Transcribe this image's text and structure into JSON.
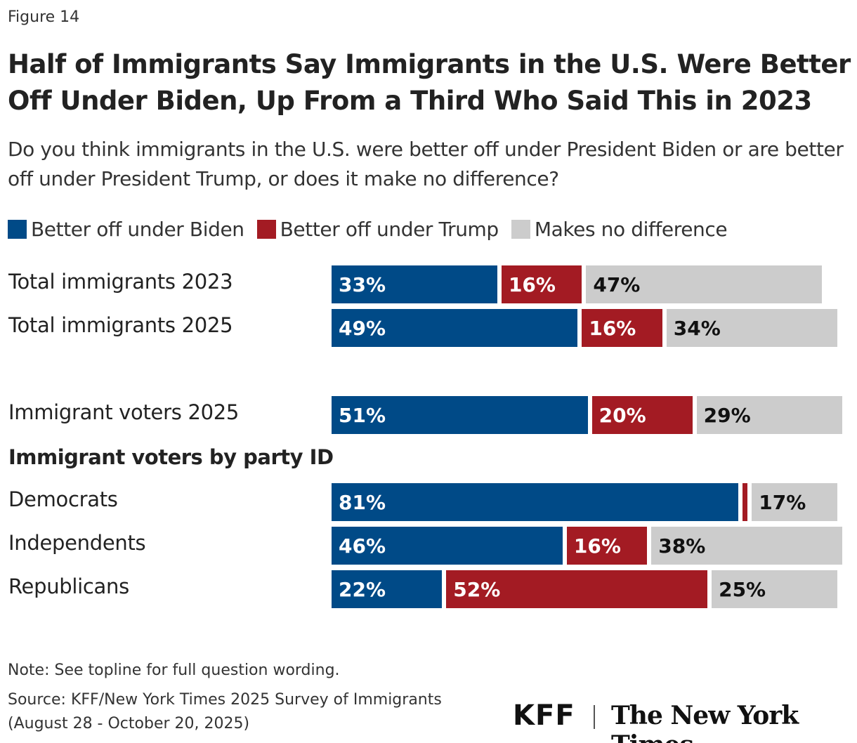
{
  "figure_label": "Figure 14",
  "chart_data": {
    "type": "bar",
    "orientation": "horizontal",
    "stacked": true,
    "title": "Half of Immigrants Say Immigrants in the U.S. Were Better Off Under Biden, Up From a Third Who Said This in 2023",
    "subtitle": "Do you think immigrants in the U.S. were better off under President Biden or are better off under President Trump, or does it make no difference?",
    "legend_position": "top",
    "xlim": [
      0,
      100
    ],
    "grid": false,
    "series": [
      {
        "name": "Better off under Biden",
        "color": "#004a87",
        "label_color": "#ffffff"
      },
      {
        "name": "Better off under Trump",
        "color": "#a31b23",
        "label_color": "#ffffff"
      },
      {
        "name": "Makes no difference",
        "color": "#cccccc",
        "label_color": "#111111"
      }
    ],
    "rows": [
      {
        "label": "Total immigrants 2023",
        "values": [
          33,
          16,
          47
        ],
        "labels": [
          "33%",
          "16%",
          "47%"
        ]
      },
      {
        "label": "Total immigrants 2025",
        "values": [
          49,
          16,
          34
        ],
        "labels": [
          "49%",
          "16%",
          "34%"
        ]
      },
      {
        "label": "Immigrant voters 2025",
        "values": [
          51,
          20,
          29
        ],
        "labels": [
          "51%",
          "20%",
          "29%"
        ]
      },
      {
        "group": "Immigrant voters by party ID"
      },
      {
        "label": "Democrats",
        "values": [
          81,
          1,
          17
        ],
        "labels": [
          "81%",
          "",
          "17%"
        ]
      },
      {
        "label": "Independents",
        "values": [
          46,
          16,
          38
        ],
        "labels": [
          "46%",
          "16%",
          "38%"
        ]
      },
      {
        "label": "Republicans",
        "values": [
          22,
          52,
          25
        ],
        "labels": [
          "22%",
          "52%",
          "25%"
        ]
      }
    ]
  },
  "note": "Note: See topline for full question wording.",
  "source_line1": "Source: KFF/New York Times 2025 Survey of Immigrants",
  "source_line2": "(August 28 - October 20, 2025)",
  "logos": {
    "kff": "KFF",
    "nyt": "The New York Times"
  }
}
